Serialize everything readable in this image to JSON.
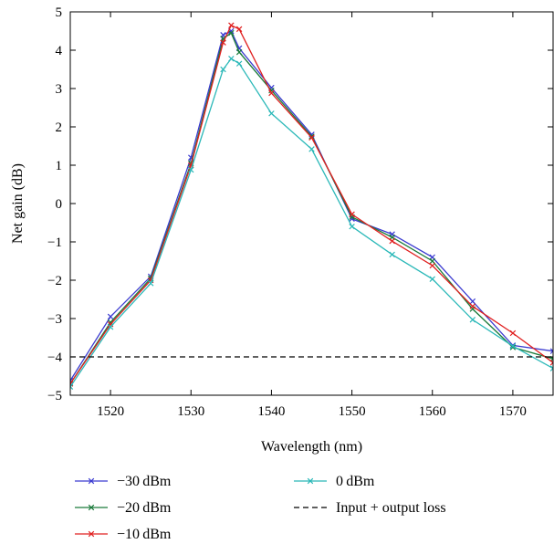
{
  "chart_data": {
    "type": "line",
    "xlabel": "Wavelength (nm)",
    "ylabel": "Net gain (dB)",
    "xlim": [
      1515,
      1575
    ],
    "ylim": [
      -5,
      5
    ],
    "x_ticks": [
      1520,
      1530,
      1540,
      1550,
      1560,
      1570
    ],
    "x_tick_labels": [
      "1520",
      "1530",
      "1540",
      "1550",
      "1560",
      "1570"
    ],
    "y_ticks": [
      -5,
      -4,
      -3,
      -2,
      -1,
      0,
      1,
      2,
      3,
      4,
      5
    ],
    "y_tick_labels": [
      "−5",
      "−4",
      "−3",
      "−2",
      "−1",
      "0",
      "1",
      "2",
      "3",
      "4",
      "5"
    ],
    "grid": false,
    "legend_placement": "below",
    "series": [
      {
        "name": "−30 dBm",
        "color": "#3a3ad0",
        "marker": "x",
        "x": [
          1515,
          1520,
          1525,
          1530,
          1534,
          1535,
          1536,
          1540,
          1545,
          1550,
          1555,
          1560,
          1565,
          1570,
          1575
        ],
        "y": [
          -4.62,
          -2.95,
          -1.9,
          1.2,
          4.4,
          4.5,
          4.05,
          3.02,
          1.8,
          -0.4,
          -0.8,
          -1.4,
          -2.55,
          -3.7,
          -3.85
        ]
      },
      {
        "name": "−20 dBm",
        "color": "#1a7a3a",
        "marker": "x",
        "x": [
          1515,
          1520,
          1525,
          1530,
          1534,
          1535,
          1536,
          1540,
          1545,
          1550,
          1555,
          1560,
          1565,
          1570,
          1575
        ],
        "y": [
          -4.7,
          -3.1,
          -1.95,
          1.05,
          4.3,
          4.45,
          3.95,
          2.95,
          1.75,
          -0.35,
          -0.88,
          -1.5,
          -2.75,
          -3.75,
          -4.05
        ]
      },
      {
        "name": "−10 dBm",
        "color": "#e02020",
        "marker": "x",
        "x": [
          1515,
          1520,
          1525,
          1530,
          1534,
          1535,
          1536,
          1540,
          1545,
          1550,
          1555,
          1560,
          1565,
          1570,
          1575
        ],
        "y": [
          -4.7,
          -3.15,
          -2.0,
          1.0,
          4.2,
          4.65,
          4.55,
          2.88,
          1.72,
          -0.28,
          -0.98,
          -1.62,
          -2.68,
          -3.38,
          -4.15
        ]
      },
      {
        "name": "0 dBm",
        "color": "#2ab8b8",
        "marker": "x",
        "x": [
          1515,
          1520,
          1525,
          1530,
          1534,
          1535,
          1536,
          1540,
          1545,
          1550,
          1555,
          1560,
          1565,
          1570,
          1575
        ],
        "y": [
          -4.78,
          -3.22,
          -2.08,
          0.88,
          3.5,
          3.78,
          3.65,
          2.35,
          1.42,
          -0.6,
          -1.33,
          -1.97,
          -3.03,
          -3.72,
          -4.3
        ]
      },
      {
        "name": "Input + output loss",
        "color": "#000000",
        "dashed": true,
        "marker": "none",
        "x": [
          1515,
          1575
        ],
        "y": [
          -4,
          -4
        ]
      }
    ]
  }
}
